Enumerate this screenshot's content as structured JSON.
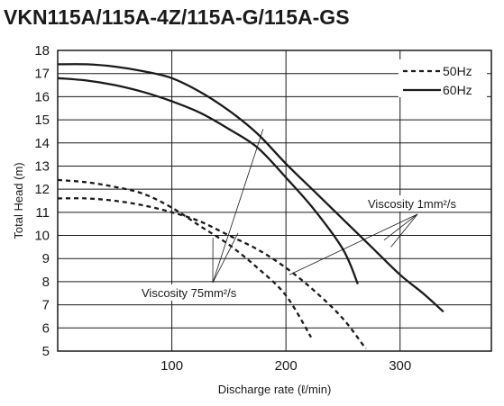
{
  "title": "VKN115A/115A-4Z/115A-G/115A-GS",
  "chart_data": {
    "type": "line",
    "title": "VKN115A/115A-4Z/115A-G/115A-GS",
    "xlabel": "Discharge rate (ℓ/min)",
    "ylabel": "Total Head (m)",
    "xlim": [
      0,
      380
    ],
    "ylim": [
      5,
      18
    ],
    "x_ticks": [
      100,
      200,
      300
    ],
    "y_ticks": [
      5,
      6,
      7,
      8,
      9,
      10,
      11,
      12,
      13,
      14,
      15,
      16,
      17,
      18
    ],
    "grid": true,
    "legend_position": "top-right",
    "legend": [
      {
        "label": "50Hz",
        "style": "dashed"
      },
      {
        "label": "60Hz",
        "style": "solid"
      }
    ],
    "series": [
      {
        "name": "60Hz",
        "style": "solid",
        "x": [
          0,
          25,
          50,
          75,
          100,
          125,
          150,
          175,
          200,
          225,
          250,
          275,
          300,
          320,
          338
        ],
        "y": [
          17.4,
          17.4,
          17.3,
          17.1,
          16.8,
          16.2,
          15.4,
          14.4,
          13.1,
          11.9,
          10.7,
          9.5,
          8.3,
          7.5,
          6.7
        ]
      },
      {
        "name": "60Hz",
        "style": "solid",
        "x": [
          0,
          25,
          50,
          75,
          100,
          125,
          150,
          175,
          200,
          225,
          250,
          263
        ],
        "y": [
          16.8,
          16.7,
          16.5,
          16.2,
          15.8,
          15.3,
          14.6,
          13.8,
          12.5,
          11.1,
          9.4,
          7.9
        ]
      },
      {
        "name": "50Hz",
        "style": "dashed",
        "x": [
          0,
          25,
          50,
          75,
          100,
          125,
          150,
          175,
          200,
          225,
          250,
          270
        ],
        "y": [
          11.6,
          11.6,
          11.5,
          11.3,
          11.0,
          10.6,
          10.0,
          9.4,
          8.6,
          7.6,
          6.4,
          5.1
        ]
      },
      {
        "name": "50Hz",
        "style": "dashed",
        "x": [
          0,
          25,
          50,
          75,
          100,
          125,
          150,
          175,
          200,
          222
        ],
        "y": [
          12.4,
          12.3,
          12.1,
          11.8,
          11.2,
          10.4,
          9.6,
          8.6,
          7.4,
          5.6
        ]
      }
    ],
    "annotations": [
      {
        "text": "Viscosity 75mm²/s",
        "points_to": [
          [
            180,
            14.6
          ],
          [
            158,
            10.1
          ],
          [
            136,
            9.9
          ]
        ]
      },
      {
        "text": "Viscosity 1mm²/s",
        "points_to": [
          [
            203,
            8.3
          ],
          [
            286,
            9.8
          ],
          [
            292,
            9.5
          ]
        ]
      }
    ]
  }
}
